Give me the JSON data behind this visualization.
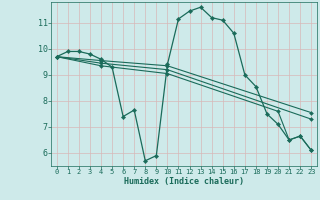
{
  "xlabel": "Humidex (Indice chaleur)",
  "bg_color": "#ceeaea",
  "line_color": "#1a6b5a",
  "grid_color": "#b8d8d8",
  "xlim": [
    -0.5,
    23.5
  ],
  "ylim": [
    5.5,
    11.8
  ],
  "xticks": [
    0,
    1,
    2,
    3,
    4,
    5,
    6,
    7,
    8,
    9,
    10,
    11,
    12,
    13,
    14,
    15,
    16,
    17,
    18,
    19,
    20,
    21,
    22,
    23
  ],
  "yticks": [
    6,
    7,
    8,
    9,
    10,
    11
  ],
  "lines": [
    {
      "x": [
        0,
        1,
        2,
        3,
        4,
        5,
        6,
        7,
        8,
        9,
        10,
        11,
        12,
        13,
        14,
        15,
        16,
        17,
        18,
        19,
        20,
        21,
        22,
        23
      ],
      "y": [
        9.7,
        9.9,
        9.9,
        9.8,
        9.6,
        9.3,
        7.4,
        7.65,
        5.7,
        5.9,
        9.4,
        11.15,
        11.45,
        11.6,
        11.2,
        11.1,
        10.6,
        9.0,
        8.55,
        7.5,
        7.1,
        6.5,
        6.65,
        6.1
      ],
      "markers": true
    },
    {
      "x": [
        0,
        4,
        10,
        23
      ],
      "y": [
        9.7,
        9.55,
        9.35,
        7.55
      ],
      "markers": true
    },
    {
      "x": [
        0,
        4,
        10,
        23
      ],
      "y": [
        9.7,
        9.45,
        9.2,
        7.3
      ],
      "markers": true
    },
    {
      "x": [
        0,
        4,
        10,
        20,
        21,
        22,
        23
      ],
      "y": [
        9.7,
        9.35,
        9.05,
        7.6,
        6.5,
        6.65,
        6.1
      ],
      "markers": true
    }
  ]
}
